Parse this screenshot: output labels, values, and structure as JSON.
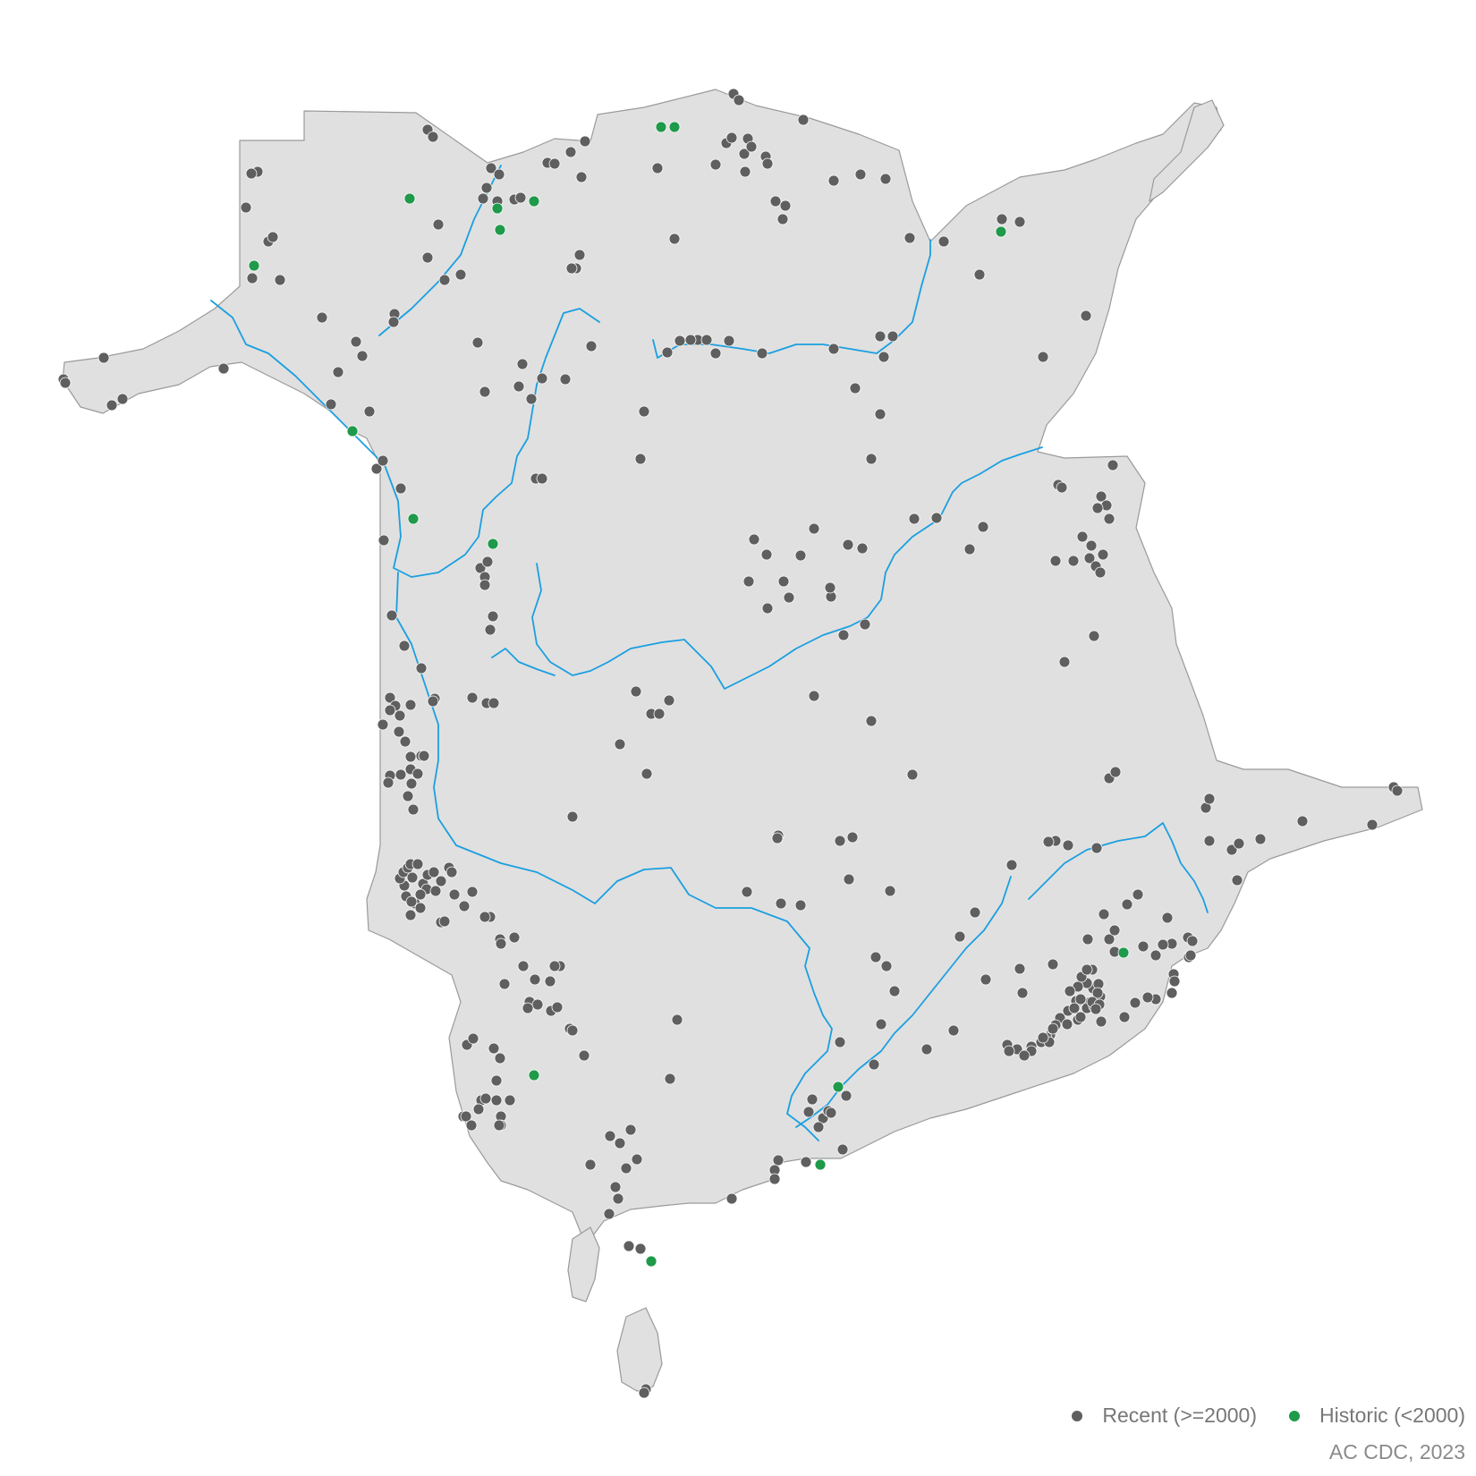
{
  "map": {
    "region": "New Brunswick",
    "colors": {
      "land": "#e0e0e0",
      "border": "#9a9a9a",
      "river": "#1a9fe0",
      "recent": "#5f5f5f",
      "historic": "#1f9a4a"
    }
  },
  "legend": {
    "recent_label": "Recent (>=2000)",
    "historic_label": "Historic (<2000)"
  },
  "credit": "AC CDC, 2023"
}
